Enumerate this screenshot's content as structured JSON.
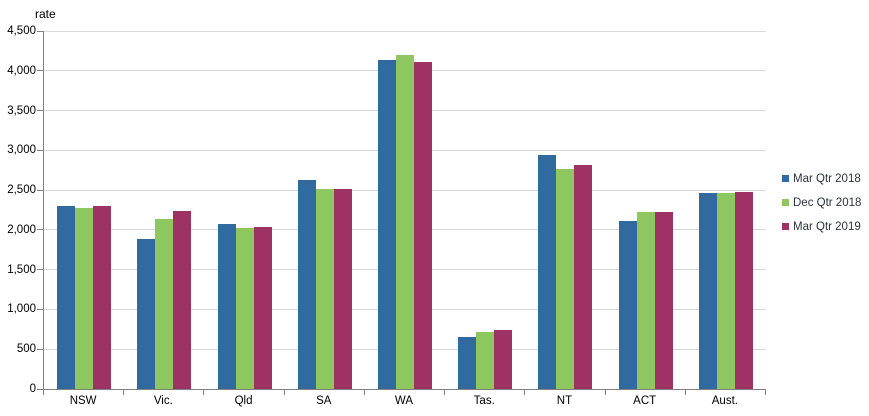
{
  "chart_data": {
    "type": "bar",
    "title": "",
    "ylabel": "rate",
    "xlabel": "",
    "categories": [
      "NSW",
      "Vic.",
      "Qld",
      "SA",
      "WA",
      "Tas.",
      "NT",
      "ACT",
      "Aust."
    ],
    "series": [
      {
        "name": "Mar Qtr 2018",
        "color": "#316A9E",
        "values": [
          2300,
          1880,
          2080,
          2630,
          4130,
          650,
          2940,
          2110,
          2470
        ]
      },
      {
        "name": "Dec Qtr 2018",
        "color": "#8EC75F",
        "values": [
          2280,
          2140,
          2020,
          2510,
          4200,
          720,
          2760,
          2230,
          2470
        ]
      },
      {
        "name": "Mar Qtr 2019",
        "color": "#9E3264",
        "values": [
          2300,
          2240,
          2040,
          2510,
          4110,
          740,
          2820,
          2230,
          2480
        ]
      }
    ],
    "ylim": [
      0,
      4500
    ],
    "ytick_step": 500,
    "ytick_labels": [
      "0",
      "500",
      "1,000",
      "1,500",
      "2,000",
      "2,500",
      "3,000",
      "3,500",
      "4,000",
      "4,500"
    ],
    "grid": true,
    "legend_position": "right"
  },
  "colors": {
    "background": "#FFFFFF",
    "gridline": "#D9D9D9",
    "axis": "#808080",
    "tick_text": "#000000",
    "legend_text": "#2A3240"
  }
}
